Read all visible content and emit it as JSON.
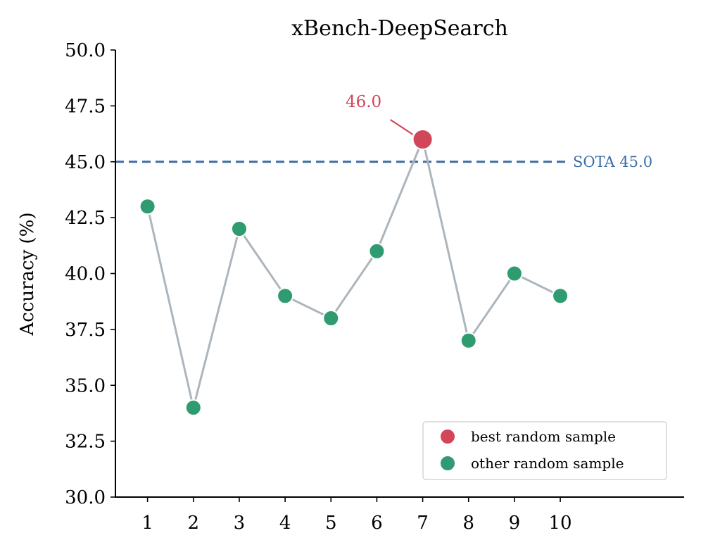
{
  "chart_data": {
    "type": "line",
    "title": "xBench-DeepSearch",
    "xlabel": "",
    "ylabel": "Accuracy (%)",
    "x": [
      1,
      2,
      3,
      4,
      5,
      6,
      7,
      8,
      9,
      10
    ],
    "x_tick_labels": [
      "1",
      "2",
      "3",
      "4",
      "5",
      "6",
      "7",
      "8",
      "9",
      "10"
    ],
    "y": [
      43.0,
      34.0,
      42.0,
      39.0,
      38.0,
      41.0,
      46.0,
      37.0,
      40.0,
      39.0
    ],
    "xlim": [
      0.3,
      12.7
    ],
    "ylim": [
      30.0,
      50.0
    ],
    "y_tick_labels": [
      "30.0",
      "32.5",
      "35.0",
      "37.5",
      "40.0",
      "42.5",
      "45.0",
      "47.5",
      "50.0"
    ],
    "best_index": 6,
    "best_label": "46.0",
    "reference_line": {
      "value": 45.0,
      "label": "SOTA  45.0",
      "style": "dashed"
    },
    "legend": {
      "position": "lower-right",
      "entries": [
        "best random sample",
        "other random sample"
      ]
    },
    "grid": false,
    "colors": {
      "best": "#d1465a",
      "other": "#2e9c70",
      "line": "#adb5bd",
      "sota": "#3a6ea5"
    }
  }
}
